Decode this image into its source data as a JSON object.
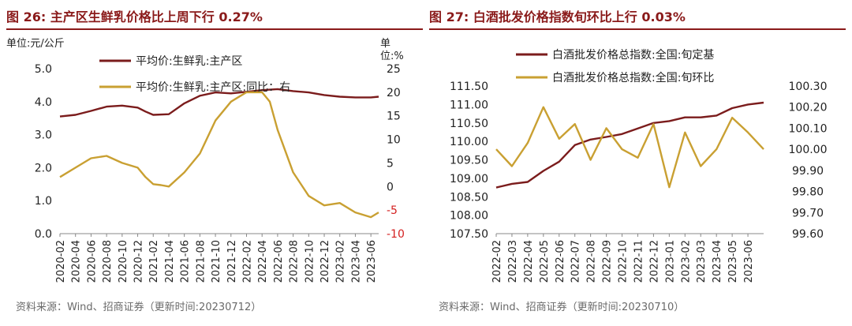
{
  "panels": [
    {
      "title": "图 26:  主产区生鲜乳价格比上周下行 0.27%",
      "source": "资料来源：Wind、招商证券（更新时间:20230712）"
    },
    {
      "title": "图 27:  白酒批发价格指数旬环比上行 0.03%",
      "source": "资料来源：Wind、招商证券（更新时间:20230710）"
    }
  ],
  "chart_data": [
    {
      "type": "line",
      "title": "图 26:  主产区生鲜乳价格比上周下行 0.27%",
      "left_unit": "单位:元/公斤",
      "right_unit": [
        "单",
        "位:%"
      ],
      "ylim_left": [
        0,
        5
      ],
      "yticks_left": [
        "0.0",
        "1.0",
        "2.0",
        "3.0",
        "4.0",
        "5.0"
      ],
      "ylim_right": [
        -10,
        25
      ],
      "yticks_right": [
        "-10",
        "-5",
        "0",
        "5",
        "10",
        "15",
        "20",
        "25"
      ],
      "x_start": "2020-02",
      "x_end": "2023-07",
      "x_ticks": [
        "2020-02",
        "2020-04",
        "2020-06",
        "2020-08",
        "2020-10",
        "2020-12",
        "2021-02",
        "2021-04",
        "2021-06",
        "2021-08",
        "2021-10",
        "2021-12",
        "2022-02",
        "2022-04",
        "2022-06",
        "2022-08",
        "2022-10",
        "2022-12",
        "2023-02",
        "2023-04",
        "2023-06"
      ],
      "series": [
        {
          "name": "平均价:生鲜乳:主产区",
          "axis": "left",
          "color": "#7b1c1c",
          "x": [
            "2020-02",
            "2020-04",
            "2020-06",
            "2020-08",
            "2020-10",
            "2020-12",
            "2021-01",
            "2021-02",
            "2021-04",
            "2021-06",
            "2021-08",
            "2021-10",
            "2021-12",
            "2022-02",
            "2022-04",
            "2022-06",
            "2022-08",
            "2022-10",
            "2022-12",
            "2023-02",
            "2023-04",
            "2023-06",
            "2023-07"
          ],
          "values": [
            3.55,
            3.6,
            3.72,
            3.85,
            3.88,
            3.82,
            3.7,
            3.6,
            3.62,
            3.95,
            4.18,
            4.28,
            4.25,
            4.3,
            4.35,
            4.38,
            4.32,
            4.28,
            4.2,
            4.15,
            4.13,
            4.13,
            4.15
          ]
        },
        {
          "name": "平均价:生鲜乳:主产区:同比：右",
          "axis": "right",
          "color": "#c9a032",
          "x": [
            "2020-02",
            "2020-04",
            "2020-06",
            "2020-08",
            "2020-10",
            "2020-12",
            "2021-01",
            "2021-02",
            "2021-03",
            "2021-04",
            "2021-06",
            "2021-08",
            "2021-10",
            "2021-12",
            "2022-01",
            "2022-02",
            "2022-04",
            "2022-05",
            "2022-06",
            "2022-08",
            "2022-10",
            "2022-12",
            "2023-02",
            "2023-04",
            "2023-06",
            "2023-07"
          ],
          "values": [
            2,
            4,
            6,
            6.5,
            5,
            4,
            2,
            0.5,
            0.3,
            0,
            3,
            7,
            14,
            18,
            19,
            20,
            20,
            18,
            12,
            3,
            -2,
            -4,
            -3.5,
            -5.5,
            -6.5,
            -5.5
          ]
        }
      ]
    },
    {
      "type": "line",
      "title": "图 27:  白酒批发价格指数旬环比上行 0.03%",
      "ylim_left": [
        107.5,
        111.5
      ],
      "yticks_left": [
        "107.50",
        "108.00",
        "108.50",
        "109.00",
        "109.50",
        "110.00",
        "110.50",
        "111.00",
        "111.50"
      ],
      "ylim_right": [
        99.6,
        100.3
      ],
      "yticks_right": [
        "99.60",
        "99.70",
        "99.80",
        "99.90",
        "100.00",
        "100.10",
        "100.20",
        "100.30"
      ],
      "x_start": "2022-02",
      "x_end": "2023-07",
      "x_ticks": [
        "2022-02",
        "2022-03",
        "2022-04",
        "2022-05",
        "2022-06",
        "2022-07",
        "2022-08",
        "2022-09",
        "2022-10",
        "2022-11",
        "2022-12",
        "2023-01",
        "2023-02",
        "2023-03",
        "2023-04",
        "2023-05",
        "2023-06"
      ],
      "series": [
        {
          "name": "白酒批发价格总指数:全国:旬定基",
          "axis": "left",
          "color": "#7b1c1c",
          "x": [
            "2022-02",
            "2022-03",
            "2022-04",
            "2022-05",
            "2022-06",
            "2022-07",
            "2022-08",
            "2022-09",
            "2022-10",
            "2022-11",
            "2022-12",
            "2023-01",
            "2023-02",
            "2023-03",
            "2023-04",
            "2023-05",
            "2023-06",
            "2023-07"
          ],
          "values": [
            108.75,
            108.85,
            108.9,
            109.2,
            109.45,
            109.9,
            110.05,
            110.12,
            110.2,
            110.35,
            110.5,
            110.55,
            110.65,
            110.65,
            110.7,
            110.9,
            111.0,
            111.05
          ]
        },
        {
          "name": "白酒批发价格总指数:全国:旬环比",
          "axis": "right",
          "color": "#c9a032",
          "x": [
            "2022-02",
            "2022-03",
            "2022-04",
            "2022-05",
            "2022-06",
            "2022-07",
            "2022-08",
            "2022-09",
            "2022-10",
            "2022-11",
            "2022-12",
            "2023-01",
            "2023-02",
            "2023-03",
            "2023-04",
            "2023-05",
            "2023-06",
            "2023-07"
          ],
          "values": [
            100.0,
            99.92,
            100.03,
            100.2,
            100.05,
            100.12,
            99.95,
            100.1,
            100.0,
            99.96,
            100.12,
            99.82,
            100.08,
            99.92,
            100.0,
            100.15,
            100.08,
            100.0
          ]
        }
      ]
    }
  ]
}
